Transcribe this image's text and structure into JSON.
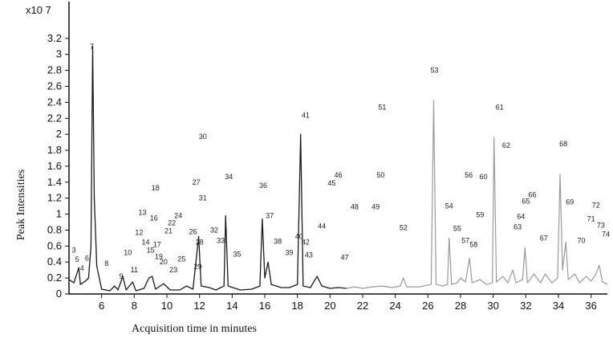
{
  "chart_data": {
    "type": "line",
    "title": "",
    "xlabel": "Acquisition time in minutes",
    "ylabel": "Peak Intensities",
    "y_scale_label": "x10 7",
    "xlim": [
      4,
      37
    ],
    "ylim": [
      0,
      3.5
    ],
    "x_ticks": [
      "6",
      "8",
      "10",
      "12",
      "14",
      "16",
      "18",
      "20",
      "22",
      "24",
      "26",
      "28",
      "30",
      "32",
      "34",
      "36"
    ],
    "y_ticks": [
      "0",
      "0.2",
      "0.4",
      "0.6",
      "0.8",
      "1",
      "1.2",
      "1.4",
      "1.6",
      "1.8",
      "2",
      "2.2",
      "2.4",
      "2.6",
      "2.8",
      "3",
      "3.2"
    ],
    "grid": false,
    "colors": {
      "early_trace": "#1a1a1a",
      "late_trace": "#9a9a9a"
    },
    "peaks": [
      {
        "label": "3",
        "x": 4.3,
        "y": 0.55
      },
      {
        "label": "5",
        "x": 4.5,
        "y": 0.43
      },
      {
        "label": "4",
        "x": 4.8,
        "y": 0.32
      },
      {
        "label": "6",
        "x": 5.1,
        "y": 0.45
      },
      {
        "label": "7",
        "x": 5.4,
        "y": 3.1
      },
      {
        "label": "8",
        "x": 6.3,
        "y": 0.38
      },
      {
        "label": "9",
        "x": 7.2,
        "y": 0.22
      },
      {
        "label": "10",
        "x": 7.6,
        "y": 0.52
      },
      {
        "label": "11",
        "x": 8.0,
        "y": 0.3
      },
      {
        "label": "12",
        "x": 8.3,
        "y": 0.77
      },
      {
        "label": "13",
        "x": 8.5,
        "y": 1.02
      },
      {
        "label": "14",
        "x": 8.7,
        "y": 0.65
      },
      {
        "label": "15",
        "x": 9.0,
        "y": 0.55
      },
      {
        "label": "16",
        "x": 9.2,
        "y": 0.95
      },
      {
        "label": "17",
        "x": 9.4,
        "y": 0.62
      },
      {
        "label": "18",
        "x": 9.3,
        "y": 1.33
      },
      {
        "label": "19",
        "x": 9.5,
        "y": 0.47
      },
      {
        "label": "20",
        "x": 9.8,
        "y": 0.4
      },
      {
        "label": "21",
        "x": 10.1,
        "y": 0.79
      },
      {
        "label": "22",
        "x": 10.3,
        "y": 0.89
      },
      {
        "label": "23",
        "x": 10.4,
        "y": 0.3
      },
      {
        "label": "24",
        "x": 10.7,
        "y": 0.98
      },
      {
        "label": "25",
        "x": 10.9,
        "y": 0.44
      },
      {
        "label": "26",
        "x": 11.6,
        "y": 0.78
      },
      {
        "label": "27",
        "x": 11.8,
        "y": 1.4
      },
      {
        "label": "28",
        "x": 12.0,
        "y": 0.65
      },
      {
        "label": "29",
        "x": 11.9,
        "y": 0.34
      },
      {
        "label": "30",
        "x": 12.2,
        "y": 1.97
      },
      {
        "label": "31",
        "x": 12.2,
        "y": 1.2
      },
      {
        "label": "32",
        "x": 12.9,
        "y": 0.8
      },
      {
        "label": "33",
        "x": 13.3,
        "y": 0.67
      },
      {
        "label": "34",
        "x": 13.8,
        "y": 1.47
      },
      {
        "label": "35",
        "x": 14.3,
        "y": 0.5
      },
      {
        "label": "36",
        "x": 15.9,
        "y": 1.36
      },
      {
        "label": "37",
        "x": 16.3,
        "y": 0.98
      },
      {
        "label": "38",
        "x": 16.8,
        "y": 0.66
      },
      {
        "label": "39",
        "x": 17.5,
        "y": 0.52
      },
      {
        "label": "40",
        "x": 18.1,
        "y": 0.72
      },
      {
        "label": "41",
        "x": 18.5,
        "y": 2.24
      },
      {
        "label": "42",
        "x": 18.5,
        "y": 0.65
      },
      {
        "label": "43",
        "x": 18.7,
        "y": 0.49
      },
      {
        "label": "44",
        "x": 19.5,
        "y": 0.85
      },
      {
        "label": "45",
        "x": 20.1,
        "y": 1.39
      },
      {
        "label": "46",
        "x": 20.5,
        "y": 1.49
      },
      {
        "label": "47",
        "x": 20.9,
        "y": 0.46
      },
      {
        "label": "48",
        "x": 21.5,
        "y": 1.09
      },
      {
        "label": "49",
        "x": 22.8,
        "y": 1.09
      },
      {
        "label": "50",
        "x": 23.1,
        "y": 1.49
      },
      {
        "label": "51",
        "x": 23.2,
        "y": 2.34
      },
      {
        "label": "52",
        "x": 24.5,
        "y": 0.83
      },
      {
        "label": "53",
        "x": 26.4,
        "y": 2.8
      },
      {
        "label": "54",
        "x": 27.3,
        "y": 1.1
      },
      {
        "label": "55",
        "x": 27.8,
        "y": 0.82
      },
      {
        "label": "56",
        "x": 28.5,
        "y": 1.49
      },
      {
        "label": "57",
        "x": 28.3,
        "y": 0.67
      },
      {
        "label": "58",
        "x": 28.8,
        "y": 0.62
      },
      {
        "label": "59",
        "x": 29.2,
        "y": 0.99
      },
      {
        "label": "60",
        "x": 29.4,
        "y": 1.47
      },
      {
        "label": "61",
        "x": 30.4,
        "y": 2.34
      },
      {
        "label": "62",
        "x": 30.8,
        "y": 1.86
      },
      {
        "label": "63",
        "x": 31.5,
        "y": 0.84
      },
      {
        "label": "64",
        "x": 31.7,
        "y": 0.97
      },
      {
        "label": "65",
        "x": 32.0,
        "y": 1.16
      },
      {
        "label": "66",
        "x": 32.4,
        "y": 1.24
      },
      {
        "label": "67",
        "x": 33.1,
        "y": 0.7
      },
      {
        "label": "68",
        "x": 34.3,
        "y": 1.88
      },
      {
        "label": "69",
        "x": 34.7,
        "y": 1.15
      },
      {
        "label": "70",
        "x": 35.4,
        "y": 0.67
      },
      {
        "label": "71",
        "x": 36.0,
        "y": 0.94
      },
      {
        "label": "72",
        "x": 36.3,
        "y": 1.11
      },
      {
        "label": "73",
        "x": 36.6,
        "y": 0.86
      },
      {
        "label": "74",
        "x": 36.9,
        "y": 0.75
      }
    ],
    "trace": [
      [
        4.0,
        0.18
      ],
      [
        4.3,
        0.14
      ],
      [
        4.6,
        0.33
      ],
      [
        4.7,
        0.12
      ],
      [
        5.0,
        0.16
      ],
      [
        5.2,
        0.2
      ],
      [
        5.35,
        0.6
      ],
      [
        5.45,
        3.1
      ],
      [
        5.55,
        1.2
      ],
      [
        5.7,
        0.35
      ],
      [
        6.0,
        0.06
      ],
      [
        6.5,
        0.04
      ],
      [
        6.8,
        0.1
      ],
      [
        7.0,
        0.05
      ],
      [
        7.3,
        0.22
      ],
      [
        7.5,
        0.05
      ],
      [
        7.9,
        0.15
      ],
      [
        8.1,
        0.04
      ],
      [
        8.6,
        0.07
      ],
      [
        8.9,
        0.2
      ],
      [
        9.1,
        0.22
      ],
      [
        9.3,
        0.06
      ],
      [
        9.8,
        0.13
      ],
      [
        10.2,
        0.05
      ],
      [
        10.8,
        0.05
      ],
      [
        11.2,
        0.1
      ],
      [
        11.6,
        0.06
      ],
      [
        11.95,
        0.72
      ],
      [
        12.1,
        0.1
      ],
      [
        12.6,
        0.08
      ],
      [
        13.0,
        0.05
      ],
      [
        13.5,
        0.1
      ],
      [
        13.6,
        0.98
      ],
      [
        13.75,
        0.1
      ],
      [
        14.5,
        0.05
      ],
      [
        15.2,
        0.06
      ],
      [
        15.7,
        0.1
      ],
      [
        15.85,
        0.94
      ],
      [
        16.0,
        0.2
      ],
      [
        16.2,
        0.4
      ],
      [
        16.4,
        0.12
      ],
      [
        17.0,
        0.08
      ],
      [
        17.5,
        0.08
      ],
      [
        18.0,
        0.12
      ],
      [
        18.2,
        2.0
      ],
      [
        18.35,
        0.1
      ],
      [
        18.8,
        0.08
      ],
      [
        19.2,
        0.22
      ],
      [
        19.5,
        0.1
      ],
      [
        20.0,
        0.07
      ],
      [
        20.5,
        0.08
      ],
      [
        21.0,
        0.07
      ],
      [
        21.5,
        0.09
      ],
      [
        22.0,
        0.07
      ],
      [
        22.6,
        0.09
      ],
      [
        23.2,
        0.1
      ],
      [
        23.8,
        0.08
      ],
      [
        24.3,
        0.1
      ],
      [
        24.5,
        0.2
      ],
      [
        24.7,
        0.09
      ],
      [
        25.5,
        0.09
      ],
      [
        26.2,
        0.12
      ],
      [
        26.35,
        2.42
      ],
      [
        26.5,
        0.12
      ],
      [
        26.9,
        0.1
      ],
      [
        27.2,
        0.12
      ],
      [
        27.3,
        0.7
      ],
      [
        27.45,
        0.12
      ],
      [
        27.8,
        0.14
      ],
      [
        28.0,
        0.2
      ],
      [
        28.3,
        0.15
      ],
      [
        28.55,
        0.45
      ],
      [
        28.7,
        0.14
      ],
      [
        29.2,
        0.18
      ],
      [
        29.6,
        0.12
      ],
      [
        29.95,
        0.14
      ],
      [
        30.05,
        1.96
      ],
      [
        30.2,
        0.15
      ],
      [
        30.6,
        0.22
      ],
      [
        30.9,
        0.14
      ],
      [
        31.2,
        0.3
      ],
      [
        31.4,
        0.14
      ],
      [
        31.8,
        0.18
      ],
      [
        31.95,
        0.58
      ],
      [
        32.1,
        0.14
      ],
      [
        32.5,
        0.25
      ],
      [
        32.9,
        0.14
      ],
      [
        33.2,
        0.25
      ],
      [
        33.6,
        0.14
      ],
      [
        33.95,
        0.2
      ],
      [
        34.1,
        1.5
      ],
      [
        34.25,
        0.3
      ],
      [
        34.45,
        0.65
      ],
      [
        34.6,
        0.18
      ],
      [
        35.0,
        0.25
      ],
      [
        35.3,
        0.14
      ],
      [
        35.7,
        0.22
      ],
      [
        36.0,
        0.16
      ],
      [
        36.3,
        0.25
      ],
      [
        36.5,
        0.36
      ],
      [
        36.7,
        0.15
      ],
      [
        37.0,
        0.12
      ]
    ]
  }
}
